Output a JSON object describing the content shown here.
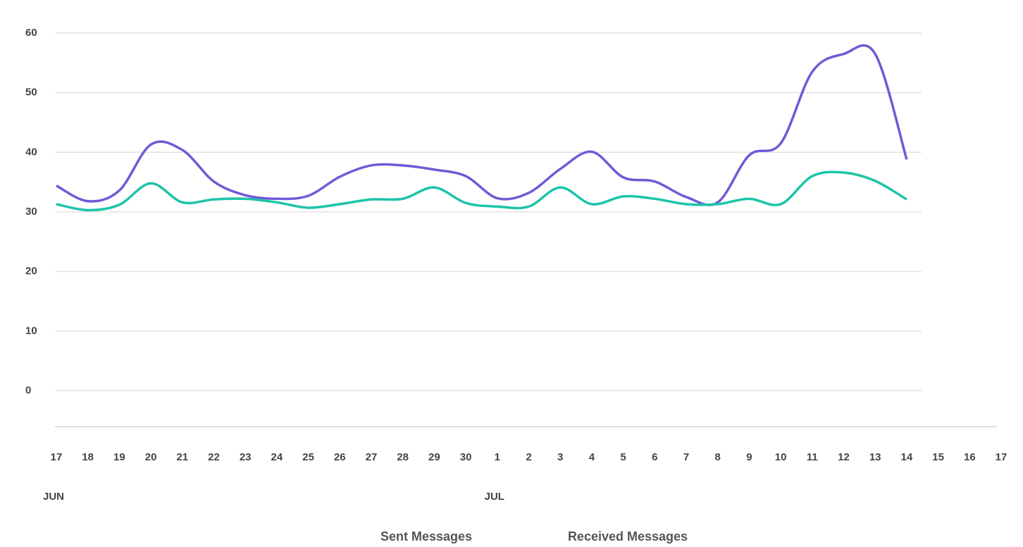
{
  "chart_data": {
    "type": "line",
    "categories": [
      "17",
      "18",
      "19",
      "20",
      "21",
      "22",
      "23",
      "24",
      "25",
      "26",
      "27",
      "28",
      "29",
      "30",
      "1",
      "2",
      "3",
      "4",
      "5",
      "6",
      "7",
      "8",
      "9",
      "10",
      "11",
      "12",
      "13",
      "14",
      "15",
      "16",
      "17"
    ],
    "x_groups": [
      "JUN",
      null,
      null,
      null,
      null,
      null,
      null,
      null,
      null,
      null,
      null,
      null,
      null,
      null,
      "JUL",
      null,
      null,
      null,
      null,
      null,
      null,
      null,
      null,
      null,
      null,
      null,
      null,
      null,
      null,
      null,
      null
    ],
    "series": [
      {
        "name": "Sent Messages",
        "color": "#7259d6",
        "values": [
          34.4,
          31.8,
          33.6,
          41.3,
          40.4,
          35.1,
          32.8,
          32.2,
          32.7,
          35.9,
          37.8,
          37.8,
          37.1,
          36.0,
          32.3,
          33.2,
          37.2,
          40.1,
          35.8,
          35.1,
          32.5,
          31.6,
          39.5,
          41.5,
          53.5,
          56.5,
          56.5,
          38.8,
          null,
          null,
          null
        ]
      },
      {
        "name": "Received Messages",
        "color": "#1cc4a8",
        "values": [
          31.3,
          30.3,
          31.2,
          34.8,
          31.6,
          32.1,
          32.2,
          31.6,
          30.7,
          31.3,
          32.1,
          32.2,
          34.1,
          31.5,
          30.9,
          30.9,
          34.1,
          31.3,
          32.6,
          32.2,
          31.3,
          31.3,
          32.2,
          31.3,
          36.0,
          36.6,
          35.2,
          32.1,
          null,
          null,
          null
        ]
      }
    ],
    "ylim": [
      0,
      60
    ],
    "yticks": [
      0,
      10,
      20,
      30,
      40,
      50,
      60
    ],
    "grid": true,
    "legend": "bottom"
  }
}
